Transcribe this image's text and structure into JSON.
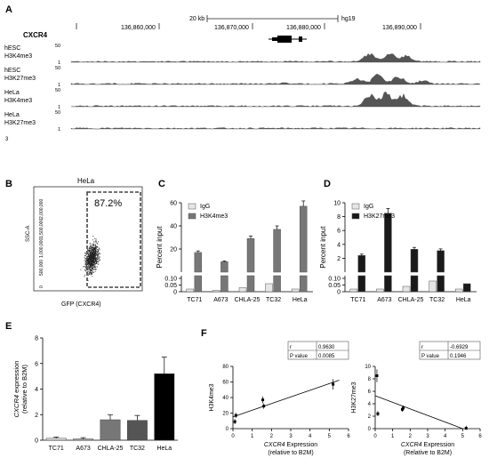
{
  "panels": {
    "A": {
      "label": "A",
      "gene": "CXCR4",
      "scale": "20 kb",
      "assembly": "hg19",
      "coords": [
        "136,860,000",
        "136,870,000",
        "136,880,000",
        "136,890,000"
      ],
      "tracks": [
        {
          "line1": "hESC",
          "line2": "H3K4me3",
          "max": "50",
          "min": "1",
          "peaks": [
            [
              0.73,
              0.42
            ],
            [
              0.78,
              0.45
            ],
            [
              0.82,
              0.3
            ]
          ]
        },
        {
          "line1": "hESC",
          "line2": "H3K27me3",
          "max": "50",
          "min": "1",
          "peaks": [
            [
              0.52,
              0.06
            ],
            [
              0.7,
              0.3
            ],
            [
              0.75,
              0.48
            ],
            [
              0.8,
              0.4
            ],
            [
              0.86,
              0.18
            ]
          ]
        },
        {
          "line1": "HeLa",
          "line2": "H3K4me3",
          "max": "50",
          "min": "1",
          "peaks": [
            [
              0.73,
              0.55
            ],
            [
              0.77,
              0.72
            ],
            [
              0.81,
              0.58
            ]
          ]
        },
        {
          "line1": "HeLa",
          "line2": "H3K27me3",
          "max": "50",
          "min": "1",
          "peaks": []
        }
      ]
    },
    "B": {
      "label": "B",
      "title": "HeLa",
      "gate_pct": "87.2%",
      "ylabel": "SSC-A",
      "xlabel": "GFP (CXCR4)",
      "yticks": [
        "2,000,000",
        "1,500,000",
        "1,000,000",
        "500,000",
        "0"
      ]
    },
    "F": {
      "label": "F",
      "left": {
        "ylabel": "H3K4me3",
        "xlabel1": "CXCR4 Expression",
        "xlabel2": "(relative to B2M)",
        "stats": [
          [
            "r",
            "0.9630"
          ],
          [
            "P value",
            "0.0085"
          ]
        ]
      },
      "right": {
        "ylabel": "H3K27me3",
        "xlabel1": "CXCR4 Expression",
        "xlabel2": "(Relative to B2M)",
        "stats": [
          [
            "r",
            "-0.6929"
          ],
          [
            "P value",
            "0.1946"
          ]
        ]
      }
    }
  },
  "chart_data": [
    {
      "panel": "C",
      "type": "bar",
      "categories": [
        "TC71",
        "A673",
        "CHLA-25",
        "TC32",
        "HeLa"
      ],
      "series": [
        {
          "name": "IgG",
          "values": [
            0.02,
            0.01,
            0.03,
            0.06,
            0.02
          ],
          "color": "#e6e6e6"
        },
        {
          "name": "H3K4me3",
          "values": [
            17,
            9,
            29,
            37,
            57
          ],
          "color": "#777777"
        }
      ],
      "ylabel": "Percent input",
      "yticks": [
        "0",
        "0.05",
        "0.10",
        "20",
        "40",
        "60"
      ],
      "ylim": [
        0,
        60
      ],
      "legend": "top-left"
    },
    {
      "panel": "D",
      "type": "bar",
      "categories": [
        "TC71",
        "A673",
        "CHLA-25",
        "TC32",
        "HeLa"
      ],
      "series": [
        {
          "name": "IgG",
          "values": [
            0.02,
            0.02,
            0.04,
            0.08,
            0.02
          ],
          "color": "#e6e6e6"
        },
        {
          "name": "H3K27me3",
          "values": [
            2.4,
            8.5,
            3.3,
            3.1,
            0.06
          ],
          "color": "#1a1a1a"
        }
      ],
      "ylabel": "Percent input",
      "yticks": [
        "0",
        "0.05",
        "0.10",
        "2",
        "4",
        "6",
        "8",
        "10"
      ],
      "ylim": [
        0,
        10
      ],
      "legend": "top-left"
    },
    {
      "panel": "E",
      "type": "bar",
      "categories": [
        "TC71",
        "A673",
        "CHLA-25",
        "TC32",
        "HeLa"
      ],
      "values": [
        0.15,
        0.1,
        1.6,
        1.55,
        5.2
      ],
      "colors": [
        "#dcdcdc",
        "#aaaaaa",
        "#777777",
        "#555555",
        "#000000"
      ],
      "ylabel_italic": "CXCR4",
      "ylabel_rest": " expression",
      "ylabel2": "(relative to B2M)",
      "yticks": [
        "0",
        "2",
        "4",
        "6",
        "8"
      ],
      "ylim": [
        0,
        8
      ]
    },
    {
      "panel": "F-left",
      "type": "scatter",
      "points": [
        [
          0.15,
          17
        ],
        [
          0.1,
          9
        ],
        [
          1.6,
          29
        ],
        [
          1.55,
          37
        ],
        [
          5.2,
          57
        ]
      ],
      "xticks": [
        "0",
        "1",
        "2",
        "3",
        "4",
        "5",
        "6"
      ],
      "yticks": [
        "0",
        "20",
        "40",
        "60",
        "80"
      ],
      "xlim": [
        0,
        6
      ],
      "ylim": [
        0,
        80
      ]
    },
    {
      "panel": "F-right",
      "type": "scatter",
      "points": [
        [
          0.15,
          2.4
        ],
        [
          0.1,
          8.5
        ],
        [
          1.6,
          3.3
        ],
        [
          1.55,
          3.1
        ],
        [
          5.2,
          0.06
        ]
      ],
      "xticks": [
        "0",
        "1",
        "2",
        "3",
        "4",
        "5",
        "6"
      ],
      "yticks": [
        "0",
        "2",
        "4",
        "6",
        "8",
        "10"
      ],
      "xlim": [
        0,
        6
      ],
      "ylim": [
        0,
        10
      ]
    }
  ]
}
